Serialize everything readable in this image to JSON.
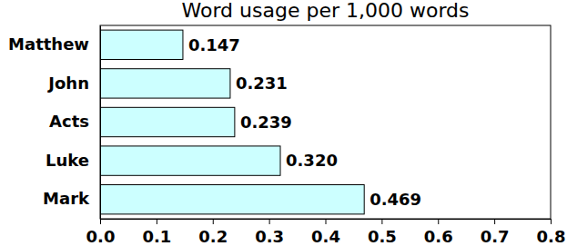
{
  "chart_data": {
    "type": "bar",
    "orientation": "horizontal",
    "title": "Word usage per 1,000 words",
    "categories": [
      "Matthew",
      "John",
      "Acts",
      "Luke",
      "Mark"
    ],
    "values": [
      0.147,
      0.231,
      0.239,
      0.32,
      0.469
    ],
    "value_labels": [
      "0.147",
      "0.231",
      "0.239",
      "0.320",
      "0.469"
    ],
    "data_labels": true,
    "color": "#ccffff",
    "xlim": [
      0,
      0.8
    ],
    "xticks": [
      {
        "value": 0,
        "label": "0.0"
      },
      0.1,
      0.2,
      0.3,
      0.4,
      0.5,
      0.6,
      0.7,
      0.8
    ],
    "grid": false
  }
}
